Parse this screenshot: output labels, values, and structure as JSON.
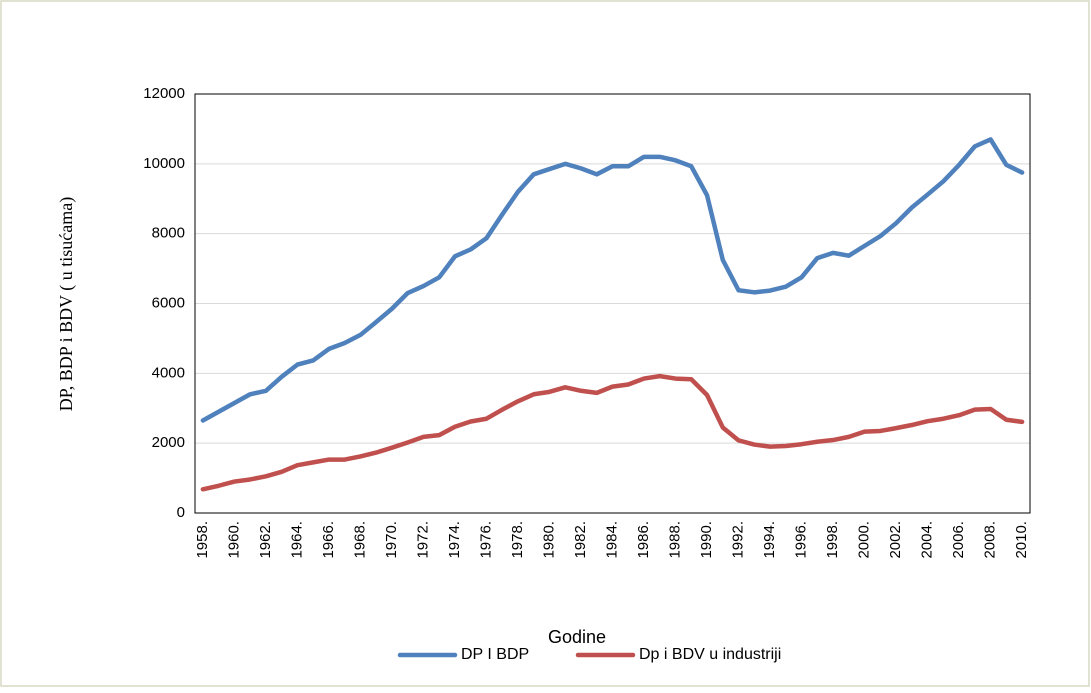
{
  "chart_data": {
    "type": "line",
    "y_label": "DP, BDP i BDV ( u tisućama)",
    "x_label": "Godine",
    "categories": [
      "1958.",
      null,
      "1960.",
      null,
      "1962.",
      null,
      "1964.",
      null,
      "1966.",
      null,
      "1968.",
      null,
      "1970.",
      null,
      "1972.",
      null,
      "1974.",
      null,
      "1976.",
      null,
      "1978.",
      null,
      "1980.",
      null,
      "1982.",
      null,
      "1984.",
      null,
      "1986.",
      null,
      "1988.",
      null,
      "1990.",
      null,
      "1992.",
      null,
      "1994.",
      null,
      "1996.",
      null,
      "1998.",
      null,
      "2000.",
      null,
      "2002.",
      null,
      "2004.",
      null,
      "2006.",
      null,
      "2008.",
      null,
      "2010."
    ],
    "series": [
      {
        "name": "DP I BDP",
        "color": "#4f81bd",
        "values": [
          2650,
          2900,
          3150,
          3400,
          3500,
          3900,
          4250,
          4370,
          4700,
          4870,
          5100,
          5470,
          5850,
          6300,
          6500,
          6750,
          7350,
          7550,
          7870,
          8550,
          9200,
          9700,
          9850,
          10000,
          9870,
          9700,
          9930,
          9930,
          10200,
          10200,
          10100,
          9930,
          9100,
          7250,
          6380,
          6320,
          6370,
          6480,
          6750,
          7300,
          7450,
          7370,
          7650,
          7930,
          8300,
          8750,
          9120,
          9500,
          9970,
          10500,
          10700,
          9970,
          9750
        ]
      },
      {
        "name": "Dp i BDV u industriji",
        "color": "#c0504d",
        "values": [
          680,
          780,
          900,
          960,
          1050,
          1180,
          1370,
          1450,
          1530,
          1530,
          1620,
          1730,
          1870,
          2020,
          2180,
          2230,
          2470,
          2620,
          2700,
          2960,
          3200,
          3400,
          3470,
          3600,
          3500,
          3440,
          3620,
          3680,
          3850,
          3920,
          3850,
          3830,
          3380,
          2450,
          2080,
          1960,
          1900,
          1920,
          1970,
          2040,
          2090,
          2180,
          2330,
          2350,
          2430,
          2520,
          2630,
          2700,
          2800,
          2960,
          2980,
          2670,
          2610
        ]
      }
    ],
    "ylim": [
      0,
      12000
    ],
    "yticks": [
      0,
      2000,
      4000,
      6000,
      8000,
      10000,
      12000
    ],
    "grid": true,
    "legend": "bottom"
  }
}
